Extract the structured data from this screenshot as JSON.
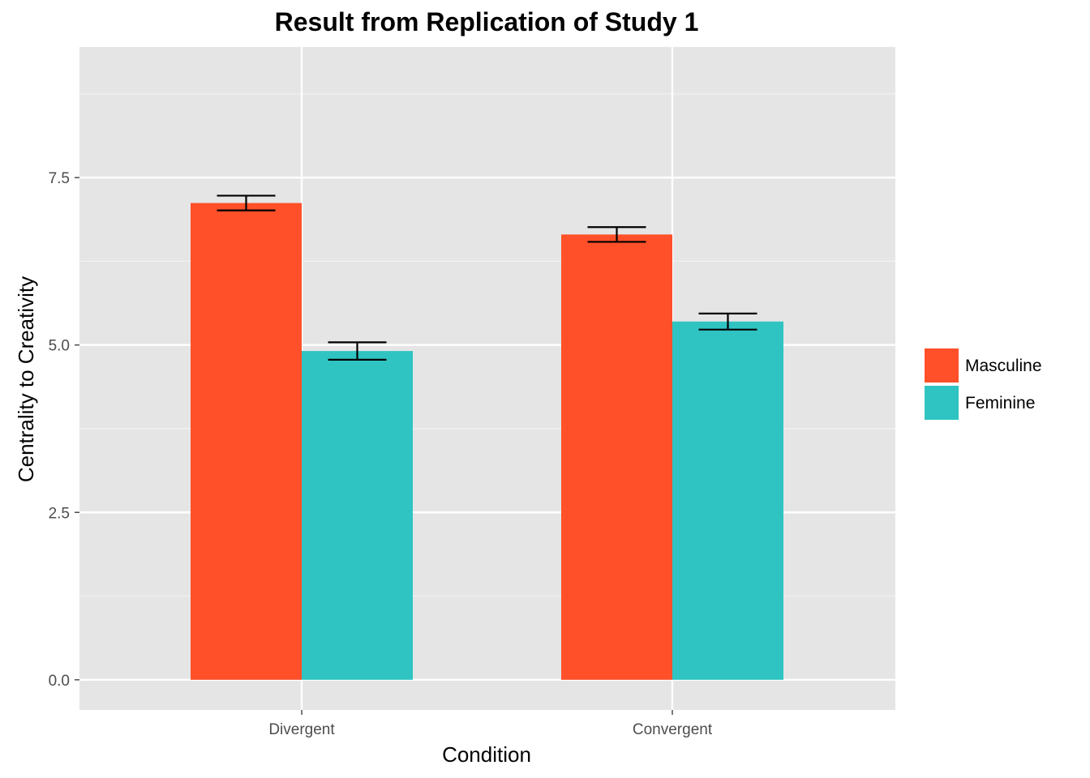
{
  "chart_data": {
    "type": "bar",
    "title": "Result from Replication of Study 1",
    "xlabel": "Condition",
    "ylabel": "Centrality to Creativity",
    "categories": [
      "Divergent",
      "Convergent"
    ],
    "series": [
      {
        "name": "Masculine",
        "color": "#FF5029",
        "values": [
          7.12,
          6.65
        ],
        "error": [
          0.11,
          0.11
        ]
      },
      {
        "name": "Feminine",
        "color": "#2FC4C2",
        "values": [
          4.91,
          5.35
        ],
        "error": [
          0.13,
          0.12
        ]
      }
    ],
    "ylim": [
      -0.45,
      9.45
    ],
    "yticks": [
      0.0,
      2.5,
      5.0,
      7.5
    ],
    "ytick_labels": [
      "0.0",
      "2.5",
      "5.0",
      "7.5"
    ],
    "grid": true,
    "panel_background": "#E5E5E5",
    "legend_position": "right"
  }
}
